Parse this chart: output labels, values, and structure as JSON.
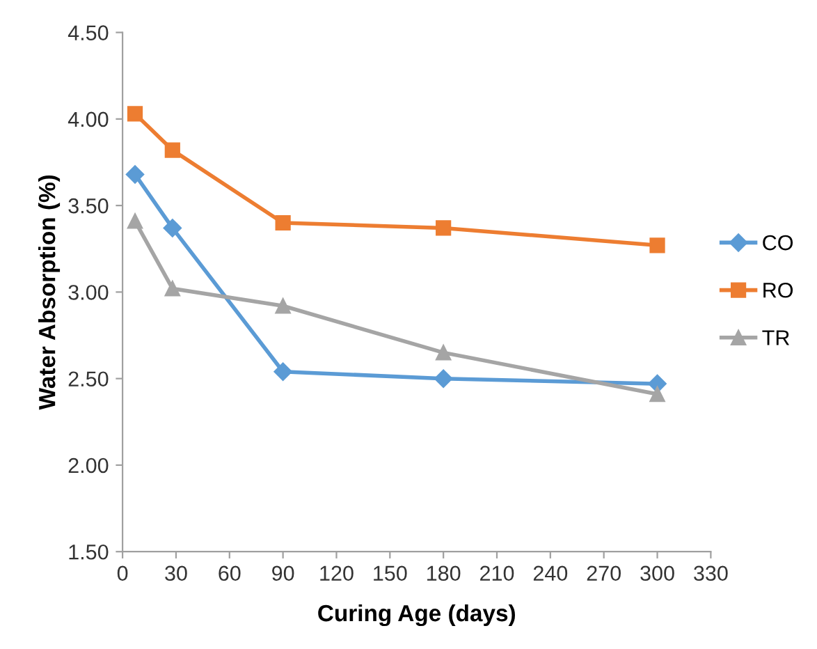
{
  "chart_data": {
    "type": "line",
    "xlabel": "Curing Age (days)",
    "ylabel": "Water Absorption (%)",
    "x": [
      7,
      28,
      90,
      180,
      300
    ],
    "series": [
      {
        "name": "CO",
        "color": "#5b9bd5",
        "marker": "diamond",
        "values": [
          3.68,
          3.37,
          2.54,
          2.5,
          2.47
        ]
      },
      {
        "name": "RO",
        "color": "#ed7d31",
        "marker": "square",
        "values": [
          4.03,
          3.82,
          3.4,
          3.37,
          3.27
        ]
      },
      {
        "name": "TR",
        "color": "#a5a5a5",
        "marker": "triangle",
        "values": [
          3.41,
          3.02,
          2.92,
          2.65,
          2.41
        ]
      }
    ],
    "xlim": [
      0,
      330
    ],
    "xticks": [
      0,
      30,
      60,
      90,
      120,
      150,
      180,
      210,
      240,
      270,
      300,
      330
    ],
    "ylim": [
      1.5,
      4.5
    ],
    "yticks": [
      {
        "value": 1.5,
        "label": "1.50"
      },
      {
        "value": 2.0,
        "label": "2.00"
      },
      {
        "value": 2.5,
        "label": "2.50"
      },
      {
        "value": 3.0,
        "label": "3.00"
      },
      {
        "value": 3.5,
        "label": "3.50"
      },
      {
        "value": 4.0,
        "label": "4.00"
      },
      {
        "value": 4.5,
        "label": "4.50"
      }
    ],
    "grid": false,
    "legend": "right",
    "line_style": "solid"
  }
}
